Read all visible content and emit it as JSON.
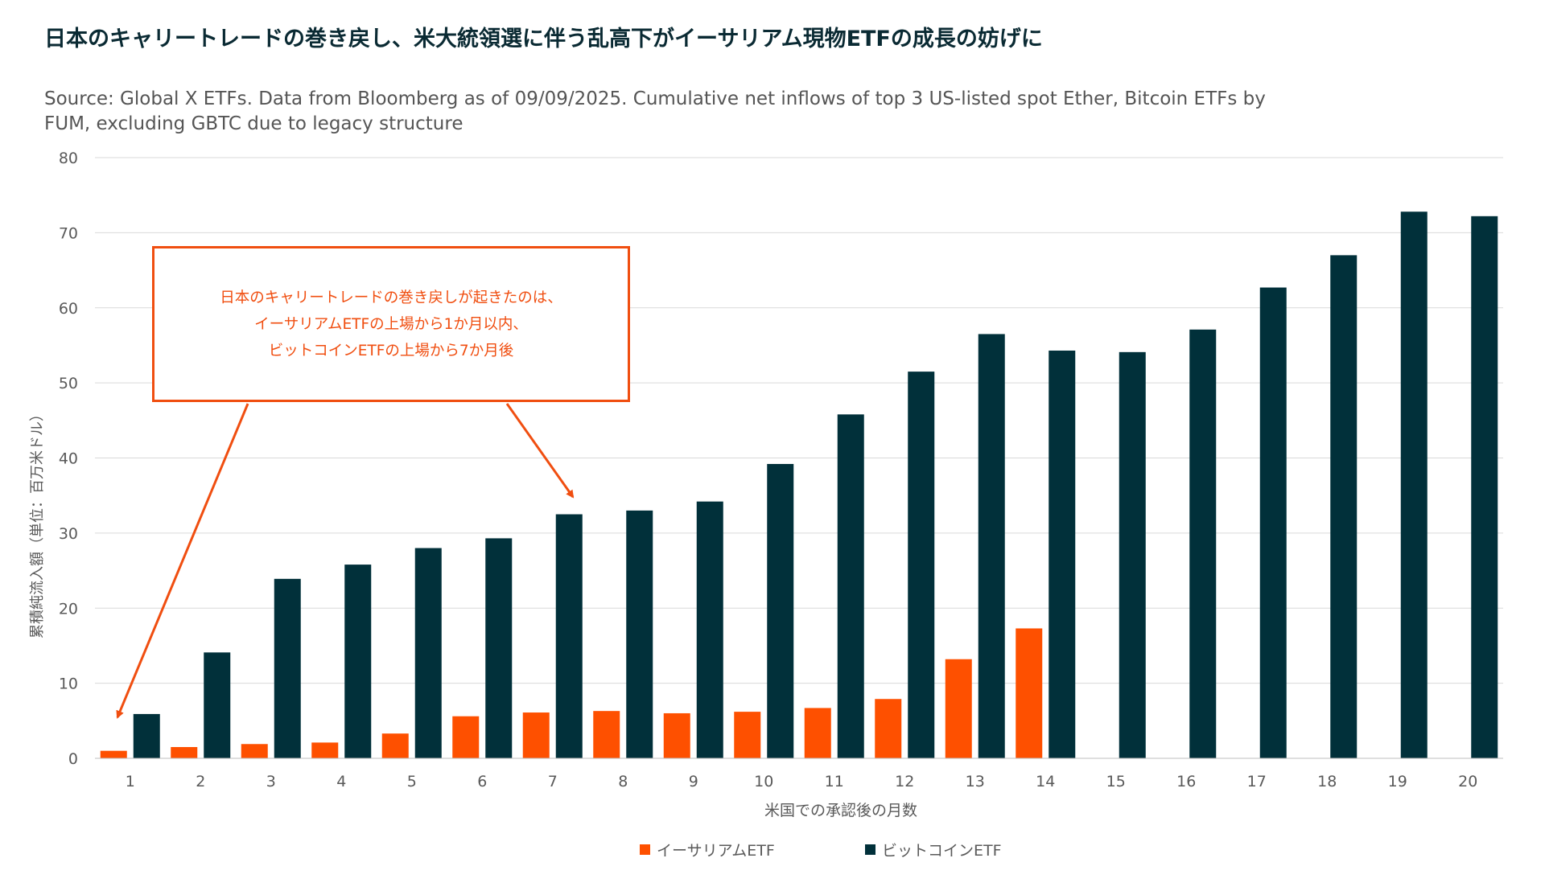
{
  "header": {
    "title": "日本のキャリートレードの巻き戻し、米大統領選に伴う乱高下がイーサリアム現物ETFの成長の妨げに",
    "subtitle": "Source: Global X ETFs. Data from Bloomberg as of 09/09/2025. Cumulative net inflows of top 3 US-listed spot Ether, Bitcoin ETFs by FUM, excluding GBTC due to legacy structure"
  },
  "annotation": {
    "lines": [
      "日本のキャリートレードの巻き戻しが起きたのは、",
      "イーサリアムETFの上場から1か月以内、",
      "ビットコインETFの上場から7か月後"
    ],
    "color": "#f04e10"
  },
  "chart_data": {
    "type": "bar",
    "title": "",
    "xlabel": "米国での承認後の月数",
    "ylabel": "累積純流入額（単位：百万米ドル）",
    "ylim": [
      0,
      80
    ],
    "yticks": [
      0,
      10,
      20,
      30,
      40,
      50,
      60,
      70,
      80
    ],
    "grid": true,
    "legend_position": "bottom-center",
    "categories": [
      "1",
      "2",
      "3",
      "4",
      "5",
      "6",
      "7",
      "8",
      "9",
      "10",
      "11",
      "12",
      "13",
      "14",
      "15",
      "16",
      "17",
      "18",
      "19",
      "20"
    ],
    "series": [
      {
        "name": "イーサリアムETF",
        "color": "#fe5000",
        "values": [
          1.0,
          1.5,
          1.9,
          2.1,
          3.3,
          5.6,
          6.1,
          6.3,
          6.0,
          6.2,
          6.7,
          7.9,
          13.2,
          17.3,
          null,
          null,
          null,
          null,
          null,
          null
        ]
      },
      {
        "name": "ビットコインETF",
        "color": "#01303a",
        "values": [
          5.9,
          14.1,
          23.9,
          25.8,
          28.0,
          29.3,
          32.5,
          33.0,
          34.2,
          39.2,
          45.8,
          51.5,
          56.5,
          54.3,
          54.1,
          57.1,
          62.7,
          67.0,
          72.8,
          72.2
        ]
      }
    ]
  }
}
